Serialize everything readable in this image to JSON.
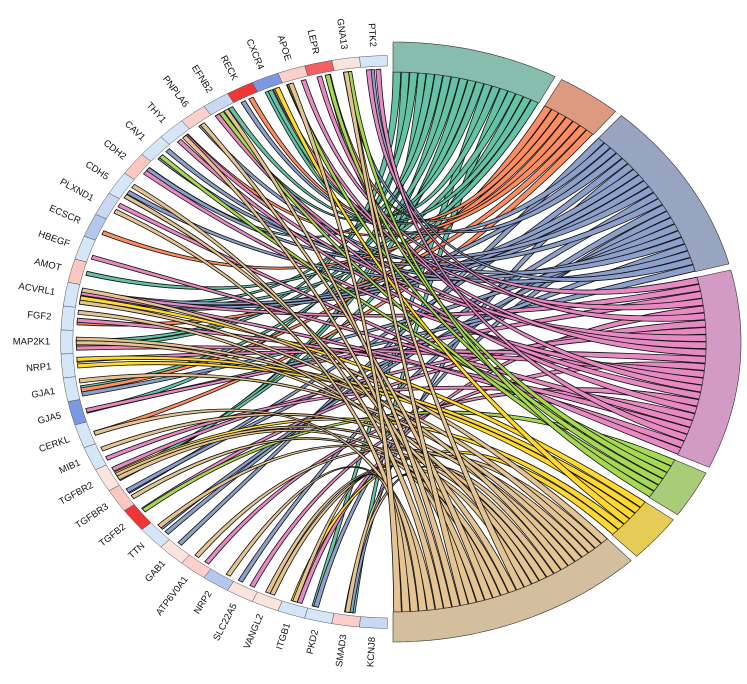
{
  "chart_data": {
    "type": "chord",
    "title": "",
    "right_sectors": [
      {
        "name": "",
        "color": "#86BDAC",
        "ribbon_color": "#66C2A5",
        "links": 18
      },
      {
        "name": "",
        "color": "#DE9A80",
        "ribbon_color": "#FC8D62",
        "links": 7
      },
      {
        "name": "",
        "color": "#98A5C2",
        "ribbon_color": "#8DA0CB",
        "links": 22
      },
      {
        "name": "",
        "color": "#D29AC4",
        "ribbon_color": "#E78AC3",
        "links": 25
      },
      {
        "name": "",
        "color": "#A8CC78",
        "ribbon_color": "#A6D854",
        "links": 6
      },
      {
        "name": "",
        "color": "#E6CB55",
        "ribbon_color": "#FFD92F",
        "links": 6
      },
      {
        "name": "",
        "color": "#D3BF9E",
        "ribbon_color": "#E5C494",
        "links": 28
      }
    ],
    "genes": [
      {
        "name": "PTK2",
        "color": "#D4E6F8"
      },
      {
        "name": "GNA13",
        "color": "#FCE4DE"
      },
      {
        "name": "LEPR",
        "color": "#F26060"
      },
      {
        "name": "APOE",
        "color": "#FBCFCC"
      },
      {
        "name": "CXCR4",
        "color": "#7D98E3"
      },
      {
        "name": "RECK",
        "color": "#EE3636"
      },
      {
        "name": "EFNB2",
        "color": "#C9D8F5"
      },
      {
        "name": "PNPLA6",
        "color": "#FBCFCC"
      },
      {
        "name": "THY1",
        "color": "#D4E6F8"
      },
      {
        "name": "CAV1",
        "color": "#D4E6F8"
      },
      {
        "name": "CDH2",
        "color": "#FBC7C2"
      },
      {
        "name": "CDH5",
        "color": "#D4E6F8"
      },
      {
        "name": "PLXND1",
        "color": "#C9D8F5"
      },
      {
        "name": "ECSCR",
        "color": "#B5C7EE"
      },
      {
        "name": "HBEGF",
        "color": "#D4E6F8"
      },
      {
        "name": "AMOT",
        "color": "#FBC7C2"
      },
      {
        "name": "ACVRL1",
        "color": "#D4E6F8"
      },
      {
        "name": "FGF2",
        "color": "#D4E6F8"
      },
      {
        "name": "MAP2K1",
        "color": "#D4E6F8"
      },
      {
        "name": "NRP1",
        "color": "#D4E6F8"
      },
      {
        "name": "GJA1",
        "color": "#D4E6F8"
      },
      {
        "name": "GJA5",
        "color": "#7D98E3"
      },
      {
        "name": "CERKL",
        "color": "#D4E6F8"
      },
      {
        "name": "MIB1",
        "color": "#D4E6F8"
      },
      {
        "name": "TGFBR2",
        "color": "#FCE4DE"
      },
      {
        "name": "TGFBR3",
        "color": "#FBC7C2"
      },
      {
        "name": "TGFB2",
        "color": "#EE3636"
      },
      {
        "name": "TTN",
        "color": "#D4E6F8"
      },
      {
        "name": "GAB1",
        "color": "#FCE4DE"
      },
      {
        "name": "ATP6V0A1",
        "color": "#FBCFCC"
      },
      {
        "name": "NRP2",
        "color": "#B5C7EE"
      },
      {
        "name": "SLC22A5",
        "color": "#FCE4DE"
      },
      {
        "name": "VANGL2",
        "color": "#FCE4DE"
      },
      {
        "name": "ITGB1",
        "color": "#D4E6F8"
      },
      {
        "name": "PKD2",
        "color": "#D4E6F8"
      },
      {
        "name": "SMAD3",
        "color": "#FBCFCC"
      },
      {
        "name": "KCNJ8",
        "color": "#C9D8F5"
      }
    ]
  }
}
